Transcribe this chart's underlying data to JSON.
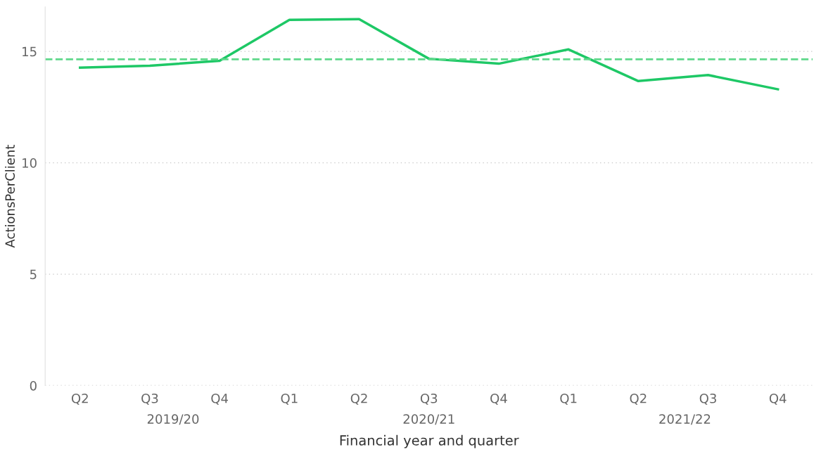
{
  "chart_data": {
    "type": "line",
    "xlabel": "Financial year and quarter",
    "ylabel": "ActionsPerClient",
    "categories": [
      "Q2",
      "Q3",
      "Q4",
      "Q1",
      "Q2",
      "Q3",
      "Q4",
      "Q1",
      "Q2",
      "Q3",
      "Q4"
    ],
    "series": [
      {
        "color": "#1ec866",
        "values": [
          14.27,
          14.36,
          14.58,
          16.42,
          16.45,
          14.67,
          14.45,
          15.09,
          13.67,
          13.94,
          13.3
        ]
      }
    ],
    "ylim": [
      0,
      17
    ],
    "yticks": [
      0,
      5,
      10,
      15
    ],
    "annotations": [
      "2019/20",
      "2020/21",
      "2021/22"
    ],
    "ref_lines": [
      {
        "axis": "y",
        "value": 14.65,
        "label": null,
        "color": "#5fd88a",
        "line_style": "dashed"
      }
    ],
    "grid": "y",
    "line_style": "solid",
    "marker": "none"
  }
}
